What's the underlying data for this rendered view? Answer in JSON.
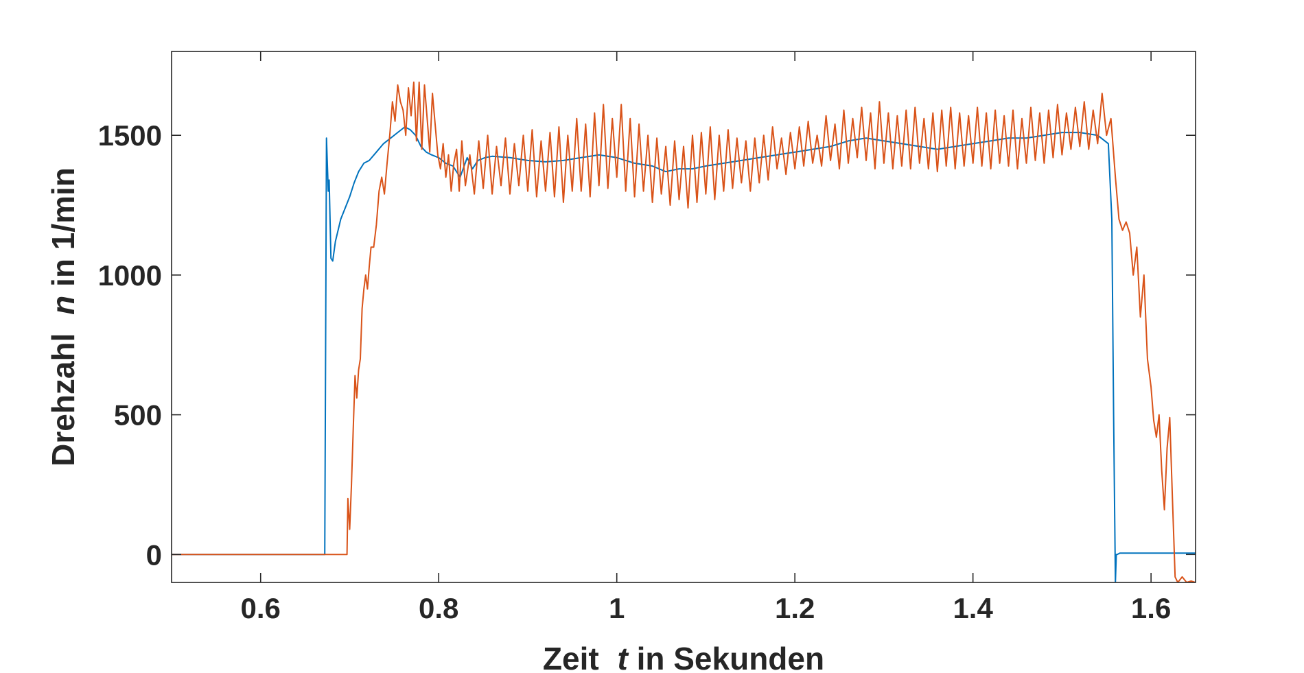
{
  "chart_data": {
    "type": "line",
    "title": "",
    "xlabel_parts": [
      "Zeit ",
      "t",
      " in Sekunden"
    ],
    "ylabel_parts": [
      "Drehzahl ",
      "n",
      " in 1/min"
    ],
    "xlim": [
      0.5,
      1.65
    ],
    "ylim": [
      -100,
      1800
    ],
    "xticks": [
      0.6,
      0.8,
      1.0,
      1.2,
      1.4,
      1.6
    ],
    "xtick_labels": [
      "0.6",
      "0.8",
      "1",
      "1.2",
      "1.4",
      "1.6"
    ],
    "yticks": [
      0,
      500,
      1000,
      1500
    ],
    "ytick_labels": [
      "0",
      "500",
      "1000",
      "1500"
    ],
    "grid": false,
    "legend": "none",
    "series": [
      {
        "color": "#0072BD",
        "x": [
          0.5,
          0.672,
          0.674,
          0.676,
          0.677,
          0.679,
          0.681,
          0.684,
          0.687,
          0.69,
          0.695,
          0.7,
          0.705,
          0.71,
          0.716,
          0.722,
          0.73,
          0.738,
          0.746,
          0.754,
          0.762,
          0.768,
          0.774,
          0.78,
          0.786,
          0.792,
          0.8,
          0.808,
          0.816,
          0.824,
          0.832,
          0.838,
          0.844,
          0.852,
          0.86,
          0.88,
          0.9,
          0.92,
          0.94,
          0.96,
          0.98,
          1.0,
          1.02,
          1.04,
          1.055,
          1.07,
          1.085,
          1.1,
          1.12,
          1.14,
          1.16,
          1.18,
          1.2,
          1.22,
          1.24,
          1.26,
          1.28,
          1.3,
          1.32,
          1.34,
          1.36,
          1.38,
          1.4,
          1.42,
          1.44,
          1.46,
          1.48,
          1.5,
          1.52,
          1.54,
          1.552,
          1.556,
          1.558,
          1.56,
          1.561,
          1.562,
          1.565,
          1.65
        ],
        "y": [
          0,
          0,
          1490,
          1300,
          1340,
          1060,
          1050,
          1120,
          1160,
          1200,
          1240,
          1280,
          1330,
          1370,
          1400,
          1410,
          1440,
          1470,
          1490,
          1510,
          1530,
          1520,
          1500,
          1460,
          1440,
          1430,
          1420,
          1400,
          1390,
          1350,
          1420,
          1380,
          1410,
          1420,
          1425,
          1420,
          1410,
          1405,
          1410,
          1420,
          1430,
          1420,
          1400,
          1390,
          1370,
          1380,
          1380,
          1390,
          1400,
          1410,
          1420,
          1430,
          1440,
          1450,
          1460,
          1480,
          1490,
          1480,
          1470,
          1460,
          1450,
          1460,
          1470,
          1480,
          1490,
          1490,
          1500,
          1510,
          1510,
          1500,
          1470,
          1200,
          500,
          -100,
          0,
          0,
          5,
          5
        ]
      },
      {
        "color": "#D95319",
        "x": [
          0.5,
          0.697,
          0.698,
          0.7,
          0.702,
          0.704,
          0.706,
          0.708,
          0.71,
          0.712,
          0.714,
          0.716,
          0.718,
          0.72,
          0.722,
          0.724,
          0.727,
          0.73,
          0.733,
          0.736,
          0.739,
          0.742,
          0.745,
          0.748,
          0.751,
          0.754,
          0.757,
          0.76,
          0.763,
          0.766,
          0.769,
          0.772,
          0.775,
          0.778,
          0.781,
          0.784,
          0.787,
          0.79,
          0.793,
          0.796,
          0.799,
          0.802,
          0.805,
          0.808,
          0.811,
          0.814,
          0.817,
          0.82,
          0.823,
          0.826,
          0.83,
          0.835,
          0.84,
          0.845,
          0.85,
          0.855,
          0.86,
          0.865,
          0.87,
          0.875,
          0.88,
          0.885,
          0.89,
          0.895,
          0.9,
          0.905,
          0.91,
          0.915,
          0.92,
          0.925,
          0.93,
          0.935,
          0.94,
          0.945,
          0.95,
          0.955,
          0.96,
          0.965,
          0.97,
          0.975,
          0.98,
          0.985,
          0.99,
          0.995,
          1.0,
          1.005,
          1.01,
          1.015,
          1.02,
          1.025,
          1.03,
          1.035,
          1.04,
          1.045,
          1.05,
          1.055,
          1.06,
          1.065,
          1.07,
          1.075,
          1.08,
          1.085,
          1.09,
          1.095,
          1.1,
          1.105,
          1.11,
          1.115,
          1.12,
          1.125,
          1.13,
          1.135,
          1.14,
          1.145,
          1.15,
          1.155,
          1.16,
          1.165,
          1.17,
          1.175,
          1.18,
          1.185,
          1.19,
          1.195,
          1.2,
          1.205,
          1.21,
          1.215,
          1.22,
          1.225,
          1.23,
          1.235,
          1.24,
          1.245,
          1.25,
          1.255,
          1.26,
          1.265,
          1.27,
          1.275,
          1.28,
          1.285,
          1.29,
          1.295,
          1.3,
          1.305,
          1.31,
          1.315,
          1.32,
          1.325,
          1.33,
          1.335,
          1.34,
          1.345,
          1.35,
          1.355,
          1.36,
          1.365,
          1.37,
          1.375,
          1.38,
          1.385,
          1.39,
          1.395,
          1.4,
          1.405,
          1.41,
          1.415,
          1.42,
          1.425,
          1.43,
          1.435,
          1.44,
          1.445,
          1.45,
          1.455,
          1.46,
          1.465,
          1.47,
          1.475,
          1.48,
          1.485,
          1.49,
          1.495,
          1.5,
          1.505,
          1.51,
          1.515,
          1.52,
          1.525,
          1.53,
          1.535,
          1.54,
          1.545,
          1.55,
          1.555,
          1.56,
          1.564,
          1.568,
          1.572,
          1.576,
          1.58,
          1.584,
          1.588,
          1.592,
          1.596,
          1.6,
          1.603,
          1.606,
          1.609,
          1.612,
          1.615,
          1.618,
          1.621,
          1.624,
          1.627,
          1.63,
          1.635,
          1.64,
          1.645,
          1.65
        ],
        "y": [
          0,
          0,
          200,
          90,
          250,
          450,
          640,
          560,
          660,
          700,
          880,
          950,
          1000,
          950,
          1030,
          1100,
          1100,
          1180,
          1300,
          1350,
          1290,
          1400,
          1500,
          1620,
          1550,
          1680,
          1620,
          1590,
          1500,
          1670,
          1570,
          1690,
          1480,
          1690,
          1450,
          1680,
          1560,
          1440,
          1650,
          1540,
          1430,
          1380,
          1470,
          1350,
          1430,
          1300,
          1400,
          1450,
          1300,
          1480,
          1320,
          1430,
          1290,
          1480,
          1310,
          1500,
          1290,
          1460,
          1320,
          1490,
          1290,
          1470,
          1320,
          1500,
          1300,
          1520,
          1280,
          1480,
          1300,
          1510,
          1280,
          1530,
          1260,
          1500,
          1300,
          1560,
          1300,
          1540,
          1280,
          1580,
          1320,
          1610,
          1310,
          1560,
          1350,
          1610,
          1300,
          1560,
          1280,
          1540,
          1300,
          1500,
          1260,
          1490,
          1290,
          1460,
          1250,
          1480,
          1270,
          1460,
          1240,
          1500,
          1260,
          1510,
          1290,
          1530,
          1270,
          1500,
          1300,
          1520,
          1310,
          1490,
          1330,
          1480,
          1300,
          1490,
          1330,
          1500,
          1340,
          1530,
          1380,
          1490,
          1360,
          1510,
          1380,
          1530,
          1390,
          1550,
          1400,
          1500,
          1390,
          1570,
          1410,
          1540,
          1380,
          1590,
          1400,
          1560,
          1420,
          1600,
          1410,
          1580,
          1380,
          1620,
          1400,
          1580,
          1380,
          1570,
          1390,
          1590,
          1380,
          1600,
          1400,
          1560,
          1380,
          1580,
          1370,
          1590,
          1390,
          1600,
          1380,
          1580,
          1390,
          1570,
          1400,
          1600,
          1390,
          1580,
          1380,
          1590,
          1400,
          1570,
          1390,
          1590,
          1380,
          1560,
          1400,
          1600,
          1410,
          1580,
          1400,
          1590,
          1420,
          1610,
          1430,
          1580,
          1450,
          1600,
          1460,
          1620,
          1450,
          1590,
          1470,
          1650,
          1500,
          1560,
          1350,
          1200,
          1160,
          1190,
          1150,
          1000,
          1100,
          850,
          1000,
          700,
          600,
          480,
          420,
          500,
          300,
          160,
          380,
          490,
          200,
          -80,
          -100,
          -80,
          -100,
          -95,
          -100
        ]
      }
    ]
  }
}
